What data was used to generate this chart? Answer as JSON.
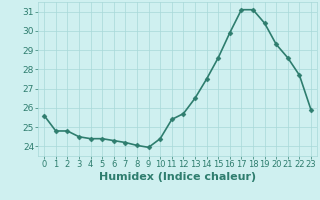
{
  "x": [
    0,
    1,
    2,
    3,
    4,
    5,
    6,
    7,
    8,
    9,
    10,
    11,
    12,
    13,
    14,
    15,
    16,
    17,
    18,
    19,
    20,
    21,
    22,
    23
  ],
  "y": [
    25.6,
    24.8,
    24.8,
    24.5,
    24.4,
    24.4,
    24.3,
    24.2,
    24.05,
    23.95,
    24.4,
    25.4,
    25.7,
    26.5,
    27.5,
    28.6,
    29.9,
    31.1,
    31.1,
    30.4,
    29.3,
    28.6,
    27.7,
    25.9
  ],
  "xlim": [
    -0.5,
    23.5
  ],
  "ylim": [
    23.5,
    31.5
  ],
  "yticks": [
    24,
    25,
    26,
    27,
    28,
    29,
    30,
    31
  ],
  "xticks": [
    0,
    1,
    2,
    3,
    4,
    5,
    6,
    7,
    8,
    9,
    10,
    11,
    12,
    13,
    14,
    15,
    16,
    17,
    18,
    19,
    20,
    21,
    22,
    23
  ],
  "xlabel": "Humidex (Indice chaleur)",
  "line_color": "#2e7d6e",
  "marker": "D",
  "marker_size": 2.5,
  "bg_color": "#cff0f0",
  "grid_color": "#a8d8d8",
  "xlabel_color": "#2e7d6e",
  "xlabel_fontsize": 8,
  "ytick_fontsize": 6.5,
  "xtick_fontsize": 6,
  "linewidth": 1.2
}
